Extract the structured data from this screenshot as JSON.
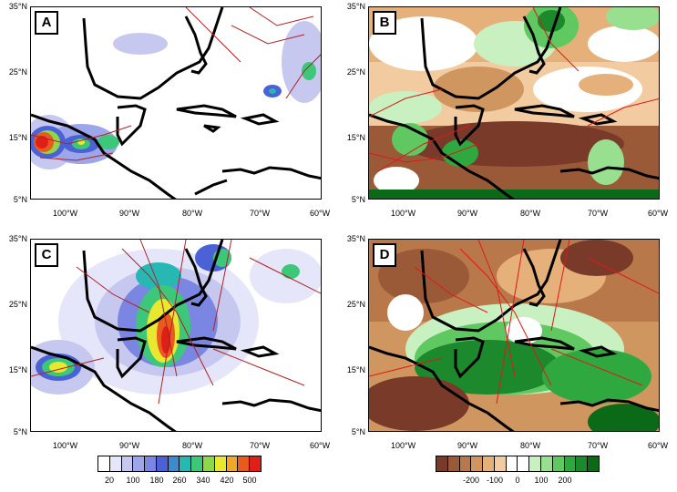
{
  "panels": [
    {
      "id": "A",
      "label": "A"
    },
    {
      "id": "B",
      "label": "B"
    },
    {
      "id": "C",
      "label": "C"
    },
    {
      "id": "D",
      "label": "D"
    }
  ],
  "lat_ticks": [
    "35°N",
    "25°N",
    "15°N",
    "5°N"
  ],
  "lon_ticks": [
    "100°W",
    "90°W",
    "80°W",
    "70°W",
    "60°W"
  ],
  "colorbar_left": {
    "labels": [
      "20",
      "100",
      "180",
      "260",
      "340",
      "420",
      "500"
    ],
    "colors": [
      "#ffffff",
      "#e6e6fa",
      "#c6c8f0",
      "#9ea6ea",
      "#7b86e2",
      "#4a62d6",
      "#3c8ad0",
      "#28b8b4",
      "#3cc878",
      "#8cd848",
      "#e8e830",
      "#f0a828",
      "#e85a1e",
      "#e02018"
    ]
  },
  "colorbar_right": {
    "labels": [
      "-200",
      "-100",
      "0",
      "100",
      "200"
    ],
    "colors": [
      "#7a3a2a",
      "#9a5a38",
      "#b8784a",
      "#d09660",
      "#e6b07a",
      "#f2cca0",
      "#ffffff",
      "#ffffff",
      "#c8f0c0",
      "#98e090",
      "#60c860",
      "#30a840",
      "#1c8a2c",
      "#0a6a18"
    ]
  }
}
